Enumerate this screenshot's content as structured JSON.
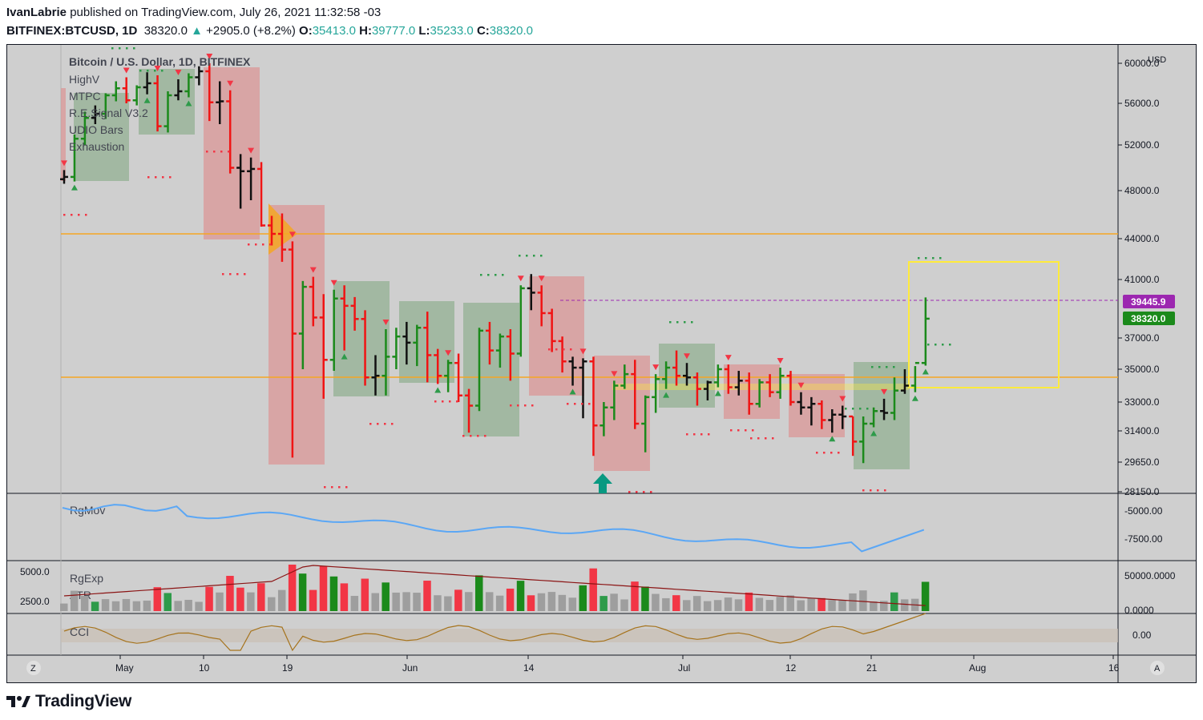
{
  "header": {
    "author": "IvanLabrie",
    "published_text": "published on TradingView.com, July 26, 2021 11:32:58 -03",
    "symbol": "BITFINEX:BTCUSD, 1D",
    "last": "38320.0",
    "change_arrow": "▲",
    "change": "+2905.0 (+8.2%)",
    "o_label": "O:",
    "o": "35413.0",
    "h_label": "H:",
    "h": "39777.0",
    "l_label": "L:",
    "l": "35233.0",
    "c_label": "C:",
    "c": "38320.0"
  },
  "legend": {
    "title": "Bitcoin / U.S. Dollar, 1D, BITFINEX",
    "indicators": [
      "HighV",
      "MTPC",
      "R.E.Signal V3.2",
      "UDIO Bars",
      "Exhaustion"
    ]
  },
  "currency": "USD",
  "price_axis": [
    "60000.0",
    "56000.0",
    "52000.0",
    "48000.0",
    "44000.0",
    "41000.0",
    "37000.0",
    "35000.0",
    "33000.0",
    "31400.0",
    "29650.0",
    "28150.0"
  ],
  "price_tags": {
    "high": "39445.9",
    "close": "38320.0"
  },
  "pane_rgmov": {
    "label": "RgMov",
    "ticks": [
      "-5000.00",
      "-7500.00"
    ]
  },
  "pane_atr": {
    "labels": [
      "RgExp",
      "ATR"
    ],
    "left_ticks": [
      "5000.0",
      "2500.0"
    ],
    "right_ticks": [
      "50000.0000",
      "0.0000"
    ]
  },
  "pane_cci": {
    "label": "CCI",
    "ticks": [
      "0.00"
    ]
  },
  "time_axis": [
    "May",
    "10",
    "19",
    "Jun",
    "14",
    "Jul",
    "12",
    "21",
    "Aug",
    "16"
  ],
  "corner_buttons": {
    "left": "Z",
    "right": "A"
  },
  "brand": "TradingView",
  "colors": {
    "up": "#1b8a1b",
    "down": "#f01414",
    "neutral": "#111111",
    "level_line": "#f5a623",
    "box_green": "#8fae8f",
    "box_red": "#d99a9a",
    "highlight_box": "#ffeb3b",
    "rgmov_line": "#5ba7f5",
    "atr_line": "#8b1414",
    "cci_line": "#a6731c",
    "tag_purple": "#9c27b0",
    "tag_green": "#1b8a1b",
    "arrow_teal": "#089981",
    "change_color": "#26a69a"
  },
  "chart_data": {
    "type": "ohlc",
    "title": "Bitcoin / U.S. Dollar, 1D, BITFINEX",
    "ylim": [
      28150,
      61000
    ],
    "ohlc": [
      [
        49000,
        49800,
        48600,
        49200
      ],
      [
        49200,
        53000,
        48800,
        52600
      ],
      [
        52600,
        55200,
        52000,
        54600
      ],
      [
        54600,
        55800,
        54000,
        55000
      ],
      [
        55000,
        57000,
        54500,
        56800
      ],
      [
        56800,
        58200,
        56200,
        57500
      ],
      [
        57500,
        58600,
        56000,
        56300
      ],
      [
        56300,
        57800,
        55800,
        57600
      ],
      [
        57600,
        59100,
        56900,
        58000
      ],
      [
        58000,
        58800,
        53300,
        53800
      ],
      [
        53800,
        57200,
        53200,
        56800
      ],
      [
        56800,
        58400,
        56300,
        57200
      ],
      [
        57200,
        59000,
        56600,
        58600
      ],
      [
        58600,
        59700,
        57800,
        59200
      ],
      [
        59200,
        60000,
        54300,
        56100
      ],
      [
        56100,
        58200,
        54000,
        56200
      ],
      [
        56200,
        57300,
        49500,
        50000
      ],
      [
        50000,
        51200,
        46500,
        49700
      ],
      [
        49700,
        50900,
        47200,
        49900
      ],
      [
        49900,
        50500,
        45000,
        45100
      ],
      [
        45100,
        45900,
        43500,
        44400
      ],
      [
        44400,
        46100,
        42300,
        43200
      ],
      [
        43200,
        43800,
        29900,
        37300
      ],
      [
        37300,
        40900,
        35000,
        40500
      ],
      [
        40500,
        41200,
        37800,
        38400
      ],
      [
        38400,
        40000,
        33200,
        35600
      ],
      [
        35600,
        40300,
        34900,
        39700
      ],
      [
        39700,
        40600,
        36200,
        39200
      ],
      [
        39200,
        39800,
        37500,
        38300
      ],
      [
        38300,
        38900,
        34000,
        34500
      ],
      [
        34500,
        35900,
        33400,
        34600
      ],
      [
        34600,
        37600,
        33400,
        35800
      ],
      [
        35800,
        37700,
        35000,
        37100
      ],
      [
        37100,
        38100,
        35300,
        36700
      ],
      [
        36700,
        37900,
        35200,
        37700
      ],
      [
        37700,
        38800,
        34200,
        35900
      ],
      [
        35900,
        36300,
        34100,
        34600
      ],
      [
        34600,
        35600,
        33600,
        35400
      ],
      [
        35400,
        36000,
        33000,
        33400
      ],
      [
        33400,
        33800,
        31300,
        32800
      ],
      [
        32800,
        37700,
        32500,
        37500
      ],
      [
        37500,
        38100,
        35300,
        36200
      ],
      [
        36200,
        37300,
        35100,
        37100
      ],
      [
        37100,
        37600,
        34300,
        36000
      ],
      [
        36000,
        40600,
        35800,
        40400
      ],
      [
        40400,
        41400,
        38900,
        40100
      ],
      [
        40100,
        40600,
        37800,
        38700
      ],
      [
        38700,
        39000,
        36100,
        36800
      ],
      [
        36800,
        37100,
        34800,
        35500
      ],
      [
        35500,
        35800,
        34000,
        35100
      ],
      [
        35100,
        35700,
        32100,
        35500
      ],
      [
        35500,
        35800,
        30000,
        31700
      ],
      [
        31700,
        33000,
        31100,
        32700
      ],
      [
        32700,
        34300,
        32000,
        34000
      ],
      [
        34000,
        35300,
        33800,
        34700
      ],
      [
        34700,
        35600,
        31500,
        31800
      ],
      [
        31800,
        33400,
        30200,
        33300
      ],
      [
        33300,
        34700,
        32400,
        34400
      ],
      [
        34400,
        35500,
        33800,
        35100
      ],
      [
        35100,
        36200,
        34000,
        34600
      ],
      [
        34600,
        35400,
        34000,
        34500
      ],
      [
        34500,
        34800,
        32800,
        33800
      ],
      [
        33800,
        34300,
        33100,
        34200
      ],
      [
        34200,
        35300,
        33900,
        35000
      ],
      [
        35000,
        35300,
        33500,
        33900
      ],
      [
        33900,
        34900,
        33400,
        34300
      ],
      [
        34300,
        34800,
        32300,
        32900
      ],
      [
        32900,
        34400,
        32700,
        34200
      ],
      [
        34200,
        34700,
        33300,
        33600
      ],
      [
        33600,
        35100,
        33200,
        34600
      ],
      [
        34600,
        34900,
        32800,
        33000
      ],
      [
        33000,
        33600,
        32300,
        32700
      ],
      [
        32700,
        33300,
        31700,
        32900
      ],
      [
        32900,
        33100,
        31500,
        32000
      ],
      [
        32000,
        32600,
        31300,
        32300
      ],
      [
        32300,
        32800,
        31500,
        32200
      ],
      [
        32200,
        32200,
        30000,
        30800
      ],
      [
        30800,
        32200,
        29600,
        31800
      ],
      [
        31800,
        32700,
        31600,
        32500
      ],
      [
        32500,
        33200,
        32000,
        32400
      ],
      [
        32400,
        34500,
        32000,
        33700
      ],
      [
        33700,
        35000,
        33500,
        34000
      ],
      [
        34000,
        35200,
        33600,
        35400
      ],
      [
        35400,
        39777,
        35233,
        38320
      ]
    ]
  }
}
